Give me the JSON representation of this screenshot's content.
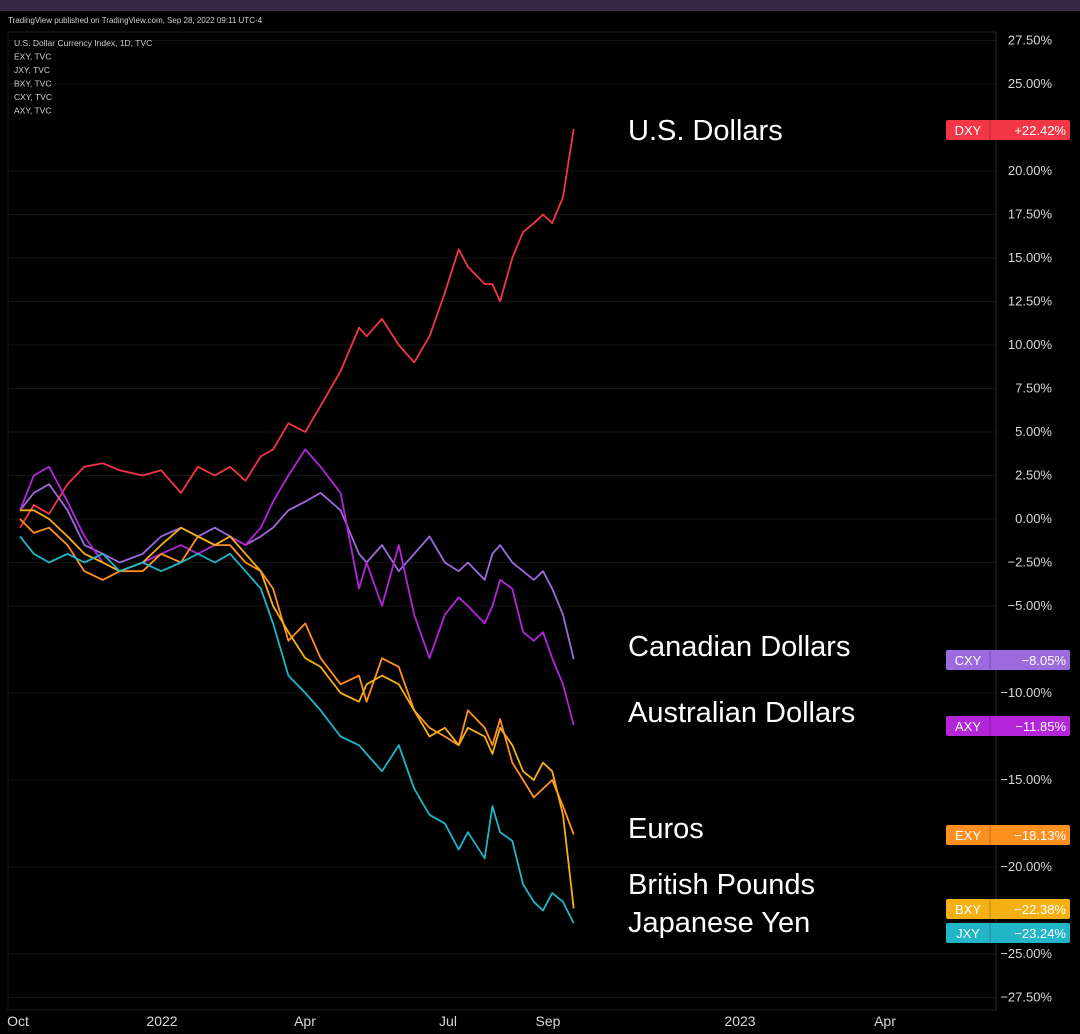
{
  "header": {
    "published": "TradingView published on TradingView.com, Sep 28, 2022 09:11 UTC-4"
  },
  "legend_lines": [
    "U.S. Dollar Currency Index, 1D, TVC",
    "EXY, TVC",
    "JXY, TVC",
    "BXY, TVC",
    "CXY, TVC",
    "AXY, TVC"
  ],
  "chart_data": {
    "type": "line",
    "x_ticks": [
      "Oct",
      "2022",
      "Apr",
      "Jul",
      "Sep",
      "2023",
      "Apr"
    ],
    "y_ticks": [
      "27.50%",
      "25.00%",
      "20.00%",
      "17.50%",
      "15.00%",
      "12.50%",
      "10.00%",
      "7.50%",
      "5.00%",
      "2.50%",
      "0.00%",
      "−2.50%",
      "−5.00%",
      "−10.00%",
      "−15.00%",
      "−20.00%",
      "−25.00%",
      "−27.50%"
    ],
    "y_tick_values": [
      27.5,
      25,
      20,
      17.5,
      15,
      12.5,
      10,
      7.5,
      5,
      2.5,
      0,
      -2.5,
      -5,
      -10,
      -15,
      -20,
      -25,
      -27.5
    ],
    "ylim": [
      -28.5,
      28.5
    ],
    "x_range": [
      "2021-10-01",
      "2023-05-01"
    ],
    "grid": true,
    "series": [
      {
        "name": "U.S. Dollars",
        "ticker": "DXY",
        "last_label": "+22.42%",
        "color": "#f23645",
        "x": [
          "2021-10-01",
          "2021-10-10",
          "2021-10-20",
          "2021-11-01",
          "2021-11-12",
          "2021-11-24",
          "2021-12-05",
          "2021-12-20",
          "2022-01-01",
          "2022-01-14",
          "2022-01-25",
          "2022-02-05",
          "2022-02-15",
          "2022-02-25",
          "2022-03-07",
          "2022-03-15",
          "2022-03-25",
          "2022-04-05",
          "2022-04-15",
          "2022-04-28",
          "2022-05-10",
          "2022-05-15",
          "2022-05-25",
          "2022-06-05",
          "2022-06-15",
          "2022-06-25",
          "2022-07-05",
          "2022-07-14",
          "2022-07-20",
          "2022-07-31",
          "2022-08-05",
          "2022-08-10",
          "2022-08-18",
          "2022-08-25",
          "2022-09-01",
          "2022-09-07",
          "2022-09-13",
          "2022-09-20",
          "2022-09-27"
        ],
        "values": [
          -0.5,
          0.8,
          0.3,
          2.0,
          3.0,
          3.2,
          2.8,
          2.5,
          2.8,
          1.5,
          3.0,
          2.5,
          3.0,
          2.2,
          3.6,
          4.0,
          5.5,
          5.0,
          6.5,
          8.5,
          11.0,
          10.5,
          11.5,
          10.0,
          9.0,
          10.5,
          13.0,
          15.5,
          14.5,
          13.5,
          13.5,
          12.5,
          15.0,
          16.5,
          17.0,
          17.5,
          17.0,
          18.5,
          22.42
        ]
      },
      {
        "name": "Canadian Dollars",
        "ticker": "CXY",
        "last_label": "−8.05%",
        "color": "#9c6ade",
        "x": [
          "2021-10-01",
          "2021-10-10",
          "2021-10-20",
          "2021-11-01",
          "2021-11-12",
          "2021-11-24",
          "2021-12-05",
          "2021-12-20",
          "2022-01-01",
          "2022-01-14",
          "2022-01-25",
          "2022-02-05",
          "2022-02-15",
          "2022-02-25",
          "2022-03-07",
          "2022-03-15",
          "2022-03-25",
          "2022-04-05",
          "2022-04-15",
          "2022-04-28",
          "2022-05-10",
          "2022-05-15",
          "2022-05-25",
          "2022-06-05",
          "2022-06-15",
          "2022-06-25",
          "2022-07-05",
          "2022-07-14",
          "2022-07-20",
          "2022-07-31",
          "2022-08-05",
          "2022-08-10",
          "2022-08-18",
          "2022-08-25",
          "2022-09-01",
          "2022-09-07",
          "2022-09-13",
          "2022-09-20",
          "2022-09-27"
        ],
        "values": [
          0.5,
          1.5,
          2.0,
          0.5,
          -1.5,
          -2.0,
          -2.5,
          -2.0,
          -1.0,
          -0.5,
          -1.0,
          -0.5,
          -1.0,
          -1.5,
          -1.0,
          -0.5,
          0.5,
          1.0,
          1.5,
          0.5,
          -2.0,
          -2.5,
          -1.5,
          -3.0,
          -2.0,
          -1.0,
          -2.5,
          -3.0,
          -2.5,
          -3.5,
          -2.0,
          -1.5,
          -2.5,
          -3.0,
          -3.5,
          -3.0,
          -4.0,
          -5.5,
          -8.05
        ]
      },
      {
        "name": "Australian Dollars",
        "ticker": "AXY",
        "last_label": "−11.85%",
        "color": "#b225d9",
        "x": [
          "2021-10-01",
          "2021-10-10",
          "2021-10-20",
          "2021-11-01",
          "2021-11-12",
          "2021-11-24",
          "2021-12-05",
          "2021-12-20",
          "2022-01-01",
          "2022-01-14",
          "2022-01-25",
          "2022-02-05",
          "2022-02-15",
          "2022-02-25",
          "2022-03-07",
          "2022-03-15",
          "2022-03-25",
          "2022-04-05",
          "2022-04-15",
          "2022-04-28",
          "2022-05-10",
          "2022-05-15",
          "2022-05-25",
          "2022-06-05",
          "2022-06-15",
          "2022-06-25",
          "2022-07-05",
          "2022-07-14",
          "2022-07-20",
          "2022-07-31",
          "2022-08-05",
          "2022-08-10",
          "2022-08-18",
          "2022-08-25",
          "2022-09-01",
          "2022-09-07",
          "2022-09-13",
          "2022-09-20",
          "2022-09-27"
        ],
        "values": [
          0.5,
          2.5,
          3.0,
          1.0,
          -1.0,
          -2.5,
          -3.0,
          -2.5,
          -2.0,
          -1.5,
          -2.0,
          -1.5,
          -1.0,
          -1.5,
          -0.5,
          1.0,
          2.5,
          4.0,
          3.0,
          1.5,
          -4.0,
          -2.5,
          -5.0,
          -1.5,
          -5.5,
          -8.0,
          -5.5,
          -4.5,
          -5.0,
          -6.0,
          -5.0,
          -3.5,
          -4.0,
          -6.5,
          -7.0,
          -6.5,
          -8.0,
          -9.5,
          -11.85
        ]
      },
      {
        "name": "Euros",
        "ticker": "EXY",
        "last_label": "−18.13%",
        "color": "#ff9020",
        "x": [
          "2021-10-01",
          "2021-10-10",
          "2021-10-20",
          "2021-11-01",
          "2021-11-12",
          "2021-11-24",
          "2021-12-05",
          "2021-12-20",
          "2022-01-01",
          "2022-01-14",
          "2022-01-25",
          "2022-02-05",
          "2022-02-15",
          "2022-02-25",
          "2022-03-07",
          "2022-03-15",
          "2022-03-25",
          "2022-04-05",
          "2022-04-15",
          "2022-04-28",
          "2022-05-10",
          "2022-05-15",
          "2022-05-25",
          "2022-06-05",
          "2022-06-15",
          "2022-06-25",
          "2022-07-05",
          "2022-07-14",
          "2022-07-20",
          "2022-07-31",
          "2022-08-05",
          "2022-08-10",
          "2022-08-18",
          "2022-08-25",
          "2022-09-01",
          "2022-09-07",
          "2022-09-13",
          "2022-09-20",
          "2022-09-27"
        ],
        "values": [
          0.0,
          -0.8,
          -0.5,
          -1.5,
          -3.0,
          -3.5,
          -3.0,
          -3.0,
          -2.0,
          -2.5,
          -1.0,
          -1.5,
          -1.5,
          -2.5,
          -3.0,
          -4.0,
          -7.0,
          -6.0,
          -8.0,
          -9.5,
          -9.0,
          -10.5,
          -8.0,
          -8.5,
          -11.0,
          -12.0,
          -12.5,
          -13.0,
          -11.0,
          -12.0,
          -13.0,
          -11.5,
          -14.0,
          -15.0,
          -16.0,
          -15.5,
          -15.0,
          -16.5,
          -18.13
        ]
      },
      {
        "name": "British Pounds",
        "ticker": "BXY",
        "last_label": "−22.38%",
        "color": "#f5b014",
        "x": [
          "2021-10-01",
          "2021-10-10",
          "2021-10-20",
          "2021-11-01",
          "2021-11-12",
          "2021-11-24",
          "2021-12-05",
          "2021-12-20",
          "2022-01-01",
          "2022-01-14",
          "2022-01-25",
          "2022-02-05",
          "2022-02-15",
          "2022-02-25",
          "2022-03-07",
          "2022-03-15",
          "2022-03-25",
          "2022-04-05",
          "2022-04-15",
          "2022-04-28",
          "2022-05-10",
          "2022-05-15",
          "2022-05-25",
          "2022-06-05",
          "2022-06-15",
          "2022-06-25",
          "2022-07-05",
          "2022-07-14",
          "2022-07-20",
          "2022-07-31",
          "2022-08-05",
          "2022-08-10",
          "2022-08-18",
          "2022-08-25",
          "2022-09-01",
          "2022-09-07",
          "2022-09-13",
          "2022-09-20",
          "2022-09-27"
        ],
        "values": [
          0.5,
          0.5,
          0.0,
          -1.0,
          -2.0,
          -2.5,
          -3.0,
          -2.5,
          -1.5,
          -0.5,
          -1.0,
          -1.5,
          -1.0,
          -2.0,
          -3.0,
          -5.0,
          -6.5,
          -8.0,
          -8.5,
          -10.0,
          -10.5,
          -9.5,
          -9.0,
          -9.5,
          -11.0,
          -12.5,
          -12.0,
          -13.0,
          -12.0,
          -12.5,
          -13.5,
          -12.0,
          -13.0,
          -14.5,
          -15.0,
          -14.0,
          -14.5,
          -17.0,
          -22.38
        ]
      },
      {
        "name": "Japanese Yen",
        "ticker": "JXY",
        "last_label": "−23.24%",
        "color": "#22b5c7",
        "x": [
          "2021-10-01",
          "2021-10-10",
          "2021-10-20",
          "2021-11-01",
          "2021-11-12",
          "2021-11-24",
          "2021-12-05",
          "2021-12-20",
          "2022-01-01",
          "2022-01-14",
          "2022-01-25",
          "2022-02-05",
          "2022-02-15",
          "2022-02-25",
          "2022-03-07",
          "2022-03-15",
          "2022-03-25",
          "2022-04-05",
          "2022-04-15",
          "2022-04-28",
          "2022-05-10",
          "2022-05-15",
          "2022-05-25",
          "2022-06-05",
          "2022-06-15",
          "2022-06-25",
          "2022-07-05",
          "2022-07-14",
          "2022-07-20",
          "2022-07-31",
          "2022-08-05",
          "2022-08-10",
          "2022-08-18",
          "2022-08-25",
          "2022-09-01",
          "2022-09-07",
          "2022-09-13",
          "2022-09-20",
          "2022-09-27"
        ],
        "values": [
          -1.0,
          -2.0,
          -2.5,
          -2.0,
          -2.5,
          -2.0,
          -3.0,
          -2.5,
          -3.0,
          -2.5,
          -2.0,
          -2.5,
          -2.0,
          -3.0,
          -4.0,
          -6.0,
          -9.0,
          -10.0,
          -11.0,
          -12.5,
          -13.0,
          -13.5,
          -14.5,
          -13.0,
          -15.5,
          -17.0,
          -17.5,
          -19.0,
          -18.0,
          -19.5,
          -16.5,
          -18.0,
          -18.5,
          -21.0,
          -22.0,
          -22.5,
          -21.5,
          -22.0,
          -23.24
        ]
      }
    ]
  }
}
